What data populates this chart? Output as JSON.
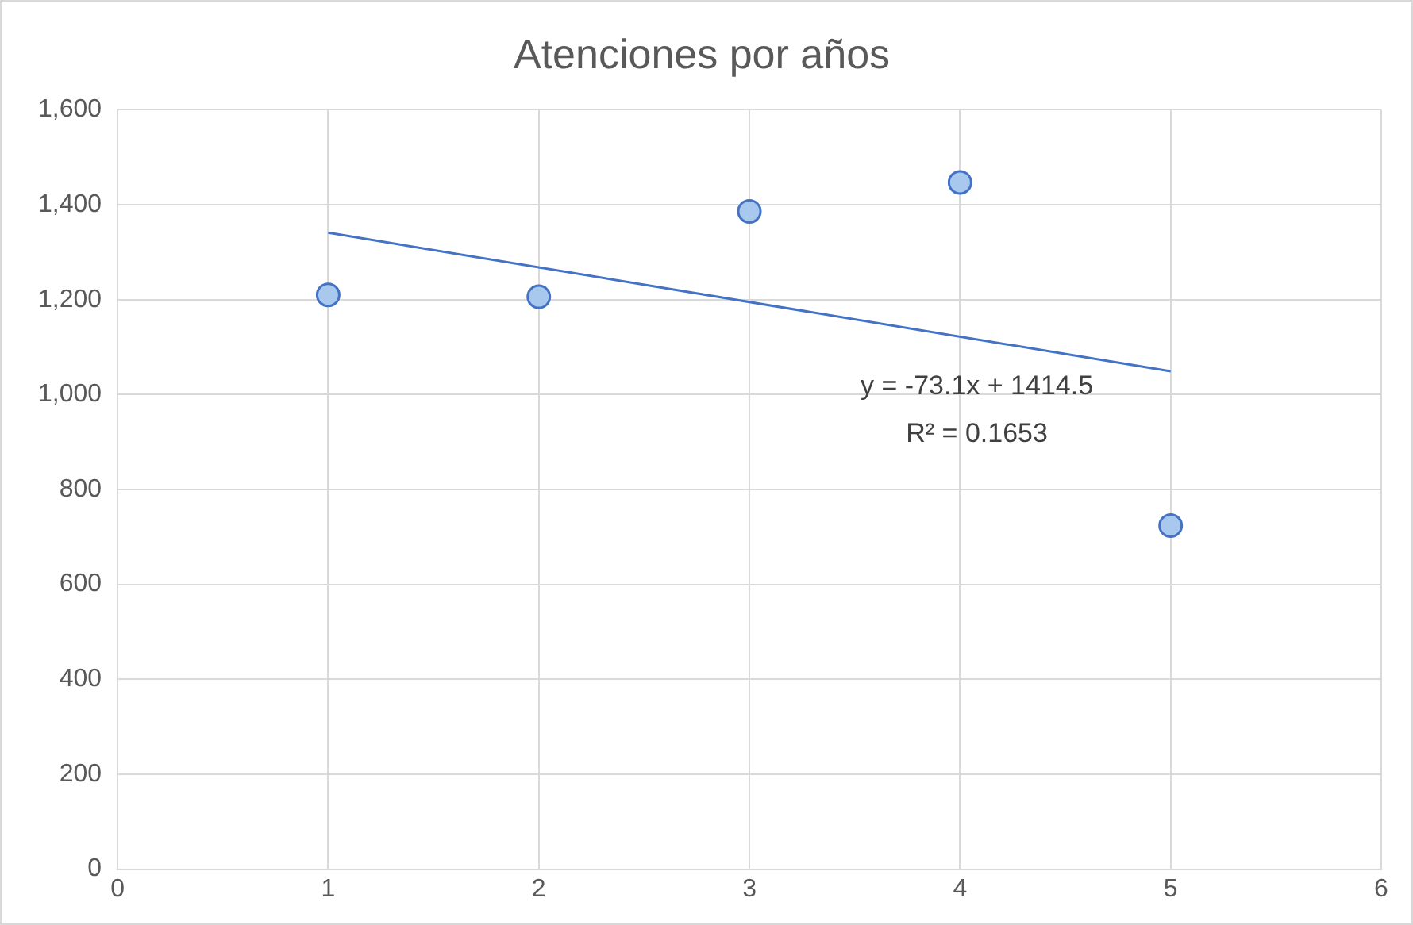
{
  "chart_data": {
    "type": "scatter",
    "title": "Atenciones por años",
    "x": [
      1,
      2,
      3,
      4,
      5
    ],
    "series": [
      {
        "color": "#a9c8ee",
        "values": [
          1210,
          1206,
          1386,
          1447,
          724
        ],
        "marker": "circle"
      },
      {
        "type": "line",
        "color": "#4472c4",
        "x": [
          1,
          5
        ],
        "values": [
          1341,
          1049
        ],
        "marker": "none"
      }
    ],
    "xlim": [
      0,
      6
    ],
    "xticks": [
      0,
      1,
      2,
      3,
      4,
      5,
      6
    ],
    "ylim": [
      0,
      1600
    ],
    "yticks": [
      0,
      200,
      400,
      600,
      800,
      {
        "value": 1000,
        "label": "1,000"
      },
      {
        "value": 1200,
        "label": "1,200"
      },
      {
        "value": 1400,
        "label": "1,400"
      },
      {
        "value": 1600,
        "label": "1,600"
      }
    ],
    "grid": true,
    "legend": false,
    "annotations": [
      "y = -73.1x + 1414.5",
      "R² = 0.1653"
    ]
  }
}
